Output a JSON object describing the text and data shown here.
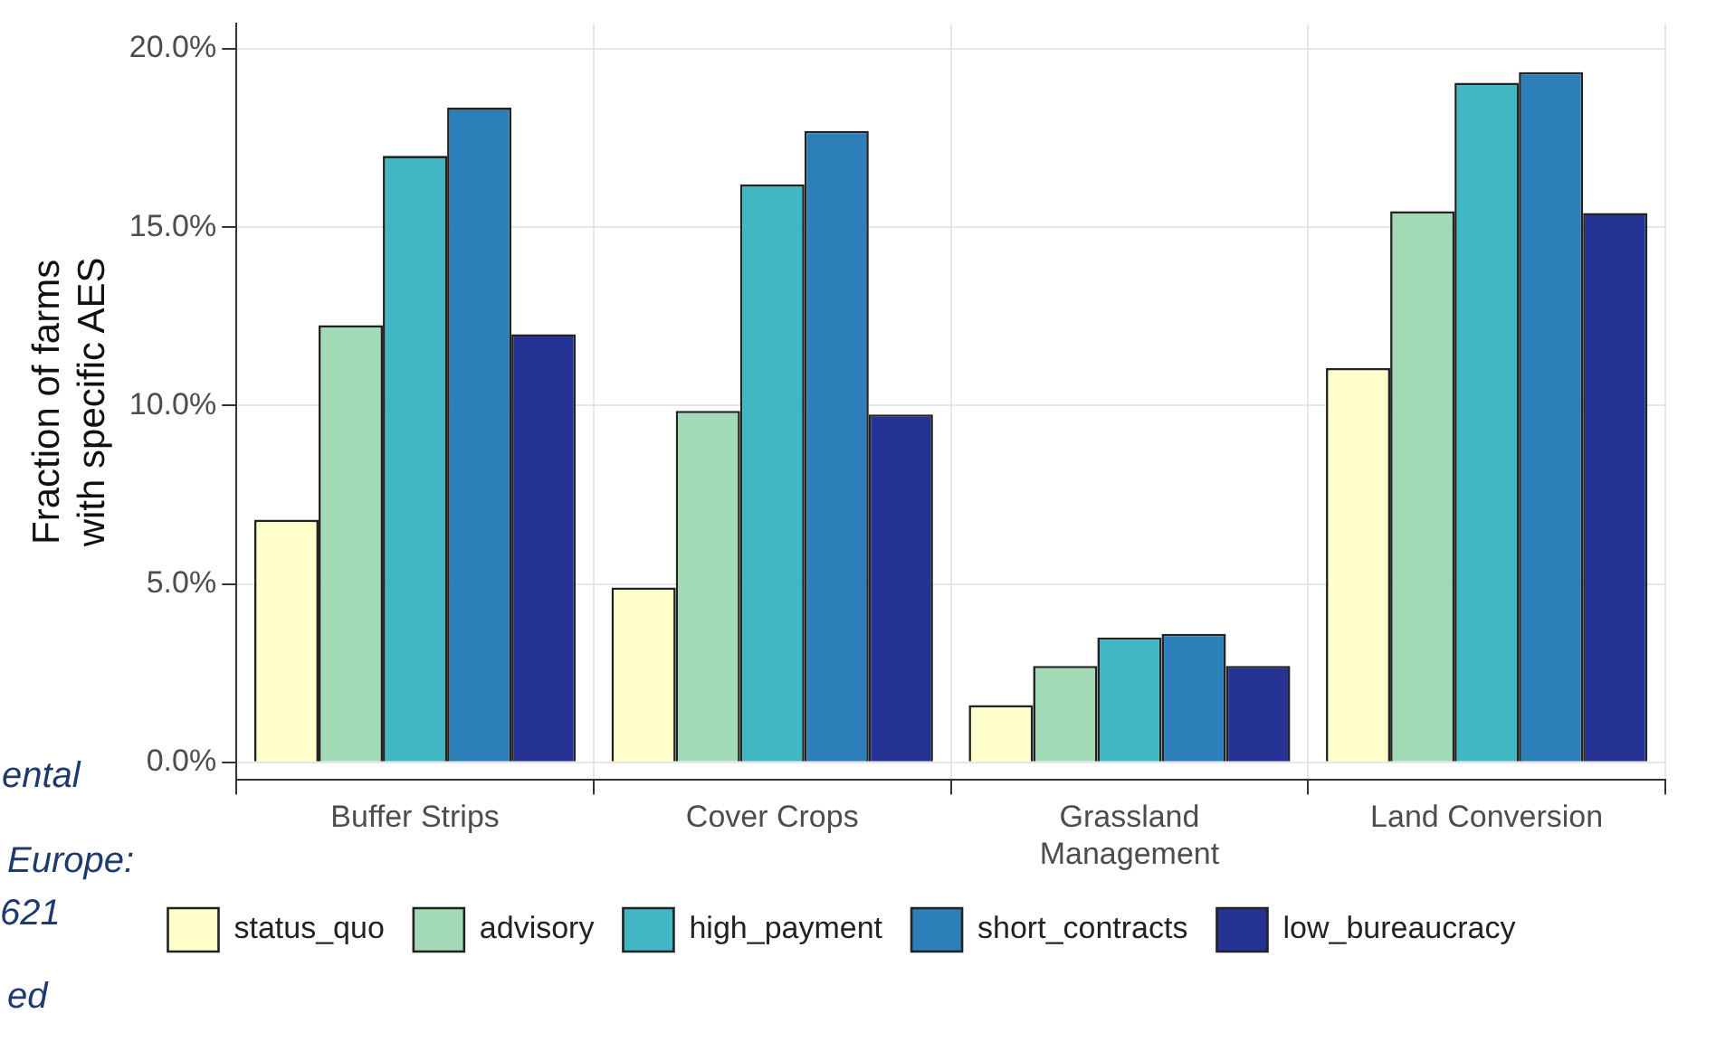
{
  "chart_data": {
    "type": "bar",
    "ylabel": "Fraction of farms\nwith specific AES",
    "categories": [
      "Buffer Strips",
      "Cover Crops",
      "Grassland\nManagement",
      "Land Conversion"
    ],
    "series": [
      {
        "name": "status_quo",
        "color": "#ffffcc",
        "values": [
          6.8,
          4.9,
          1.6,
          11.05
        ]
      },
      {
        "name": "advisory",
        "color": "#a1dab4",
        "values": [
          12.25,
          9.85,
          2.7,
          15.45
        ]
      },
      {
        "name": "high_payment",
        "color": "#41b6c4",
        "values": [
          17.0,
          16.2,
          3.5,
          19.05
        ]
      },
      {
        "name": "short_contracts",
        "color": "#2c7fb8",
        "values": [
          18.35,
          17.7,
          3.6,
          19.35
        ]
      },
      {
        "name": "low_bureaucracy",
        "color": "#253494",
        "values": [
          12.0,
          9.75,
          2.7,
          15.4
        ]
      }
    ],
    "ylim": [
      -0.5,
      20.7
    ],
    "yticks": [
      {
        "value": 0,
        "label": "0.0%"
      },
      {
        "value": 5,
        "label": "5.0%"
      },
      {
        "value": 10,
        "label": "10.0%"
      },
      {
        "value": 15,
        "label": "15.0%"
      },
      {
        "value": 20,
        "label": "20.0%"
      }
    ],
    "grid": true,
    "legend": "bottom",
    "annotations": [
      "ental",
      "Europe:",
      "621",
      "ed"
    ]
  }
}
